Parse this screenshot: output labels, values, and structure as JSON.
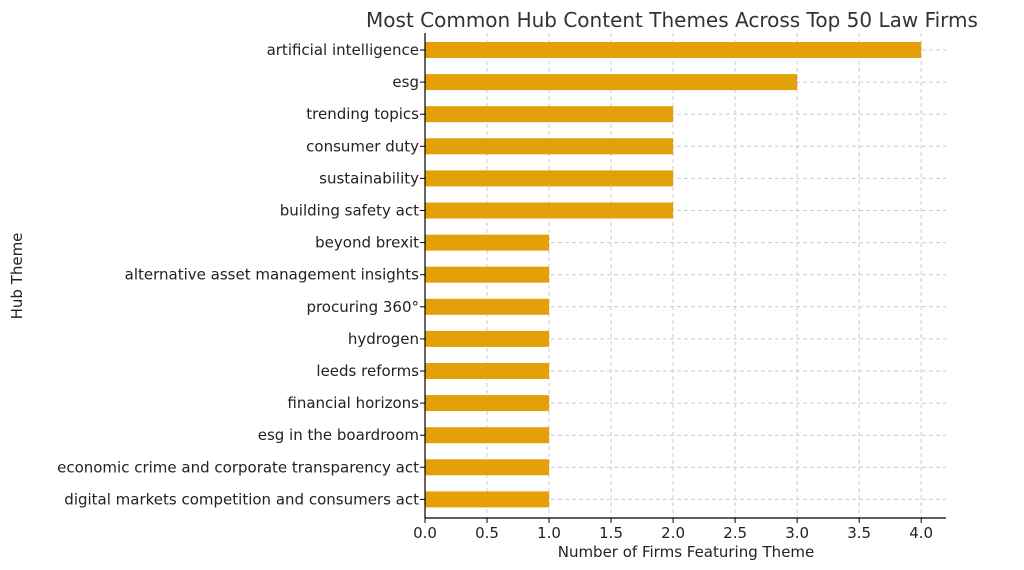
{
  "chart_data": {
    "type": "bar",
    "orientation": "horizontal",
    "title": "Most Common Hub Content Themes Across Top 50 Law Firms",
    "xlabel": "Number of Firms Featuring Theme",
    "ylabel": "Hub Theme",
    "xlim": [
      0,
      4.2
    ],
    "xticks": [
      "0.0",
      "0.5",
      "1.0",
      "1.5",
      "2.0",
      "2.5",
      "3.0",
      "3.5",
      "4.0"
    ],
    "grid": true,
    "bar_color": "#e3a008",
    "categories": [
      "artificial intelligence",
      "esg",
      "trending topics",
      "consumer duty",
      "sustainability",
      "building safety act",
      "beyond brexit",
      "alternative asset management insights",
      "procuring 360°",
      "hydrogen",
      "leeds reforms",
      "financial horizons",
      "esg in the boardroom",
      "economic crime and corporate transparency act",
      "digital markets competition and consumers act"
    ],
    "values": [
      4,
      3,
      2,
      2,
      2,
      2,
      1,
      1,
      1,
      1,
      1,
      1,
      1,
      1,
      1
    ]
  }
}
